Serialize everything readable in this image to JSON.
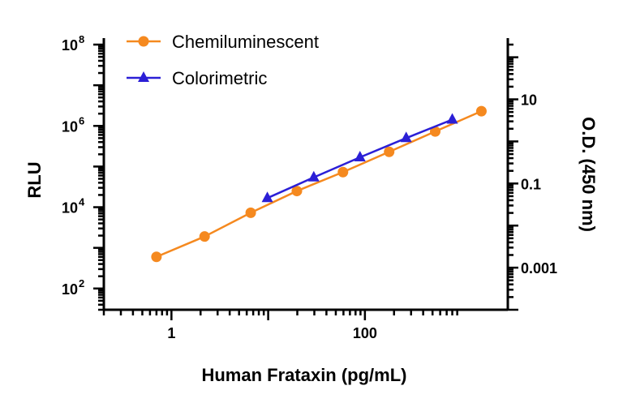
{
  "chart_data": {
    "type": "line",
    "xlabel": "Human Frataxin (pg/mL)",
    "ylabel": "RLU",
    "y2label": "O.D. (450 nm)",
    "x_scale": "log",
    "y_scale": "log",
    "y2_scale": "log",
    "xlim": [
      0.2,
      3000
    ],
    "ylim": [
      30,
      100000000
    ],
    "y2lim": [
      0.0001,
      200
    ],
    "x_ticks": [
      {
        "value": 1,
        "label": "1"
      },
      {
        "value": 100,
        "label": "100"
      }
    ],
    "y_ticks": [
      {
        "value": 100,
        "base": "10",
        "exp": "2"
      },
      {
        "value": 10000,
        "base": "10",
        "exp": "4"
      },
      {
        "value": 1000000,
        "base": "10",
        "exp": "6"
      },
      {
        "value": 100000000,
        "base": "10",
        "exp": "8"
      }
    ],
    "y2_ticks": [
      {
        "value": 0.001,
        "label": "0.001"
      },
      {
        "value": 0.1,
        "label": "0.1"
      },
      {
        "value": 10,
        "label": "10"
      }
    ],
    "grid": false,
    "legend_position": "top-left",
    "series": [
      {
        "name": "Chemiluminescent",
        "axis": "left",
        "marker": "circle",
        "color": "#F5891F",
        "x": [
          0.7,
          2.2,
          6.6,
          19.8,
          59.3,
          178,
          533,
          1600
        ],
        "y": [
          600,
          1900,
          7300,
          25000,
          73000,
          230000,
          730000,
          2300000
        ]
      },
      {
        "name": "Colorimetric",
        "axis": "right",
        "marker": "triangle",
        "color": "#2B1FD6",
        "x": [
          9.8,
          29.6,
          88.9,
          267,
          800
        ],
        "y": [
          0.045,
          0.14,
          0.42,
          1.2,
          3.3
        ]
      }
    ]
  }
}
